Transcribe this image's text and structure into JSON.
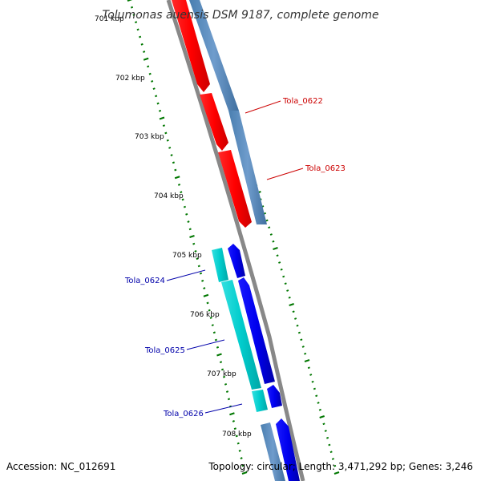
{
  "title": "Tolumonas auensis DSM 9187, complete genome",
  "footer": {
    "accession": "Accession: NC_012691",
    "summary": "Topology: circular; Length: 3,471,292 bp; Genes: 3,246"
  },
  "ruler": {
    "unit": "kbp",
    "ticks": [
      {
        "label": "701 kbp"
      },
      {
        "label": "702 kbp"
      },
      {
        "label": "703 kbp"
      },
      {
        "label": "704 kbp"
      },
      {
        "label": "705 kbp"
      },
      {
        "label": "706 kbp"
      },
      {
        "label": "707 kbp"
      },
      {
        "label": "708 kbp"
      }
    ]
  },
  "gene_labels": [
    {
      "text": "Tola_0622",
      "color": "#cc0000"
    },
    {
      "text": "Tola_0623",
      "color": "#cc0000"
    },
    {
      "text": "Tola_0624",
      "color": "#0000aa"
    },
    {
      "text": "Tola_0625",
      "color": "#0000aa"
    },
    {
      "text": "Tola_0626",
      "color": "#0000aa"
    }
  ],
  "colors": {
    "backbone": "#888888",
    "cds_forward_red": "#ff0000",
    "cds_forward_blue": "#0000ee",
    "gene_steelblue": "#5588bb",
    "gene_cyan": "#00cccc",
    "ruler_green": "#007700"
  }
}
